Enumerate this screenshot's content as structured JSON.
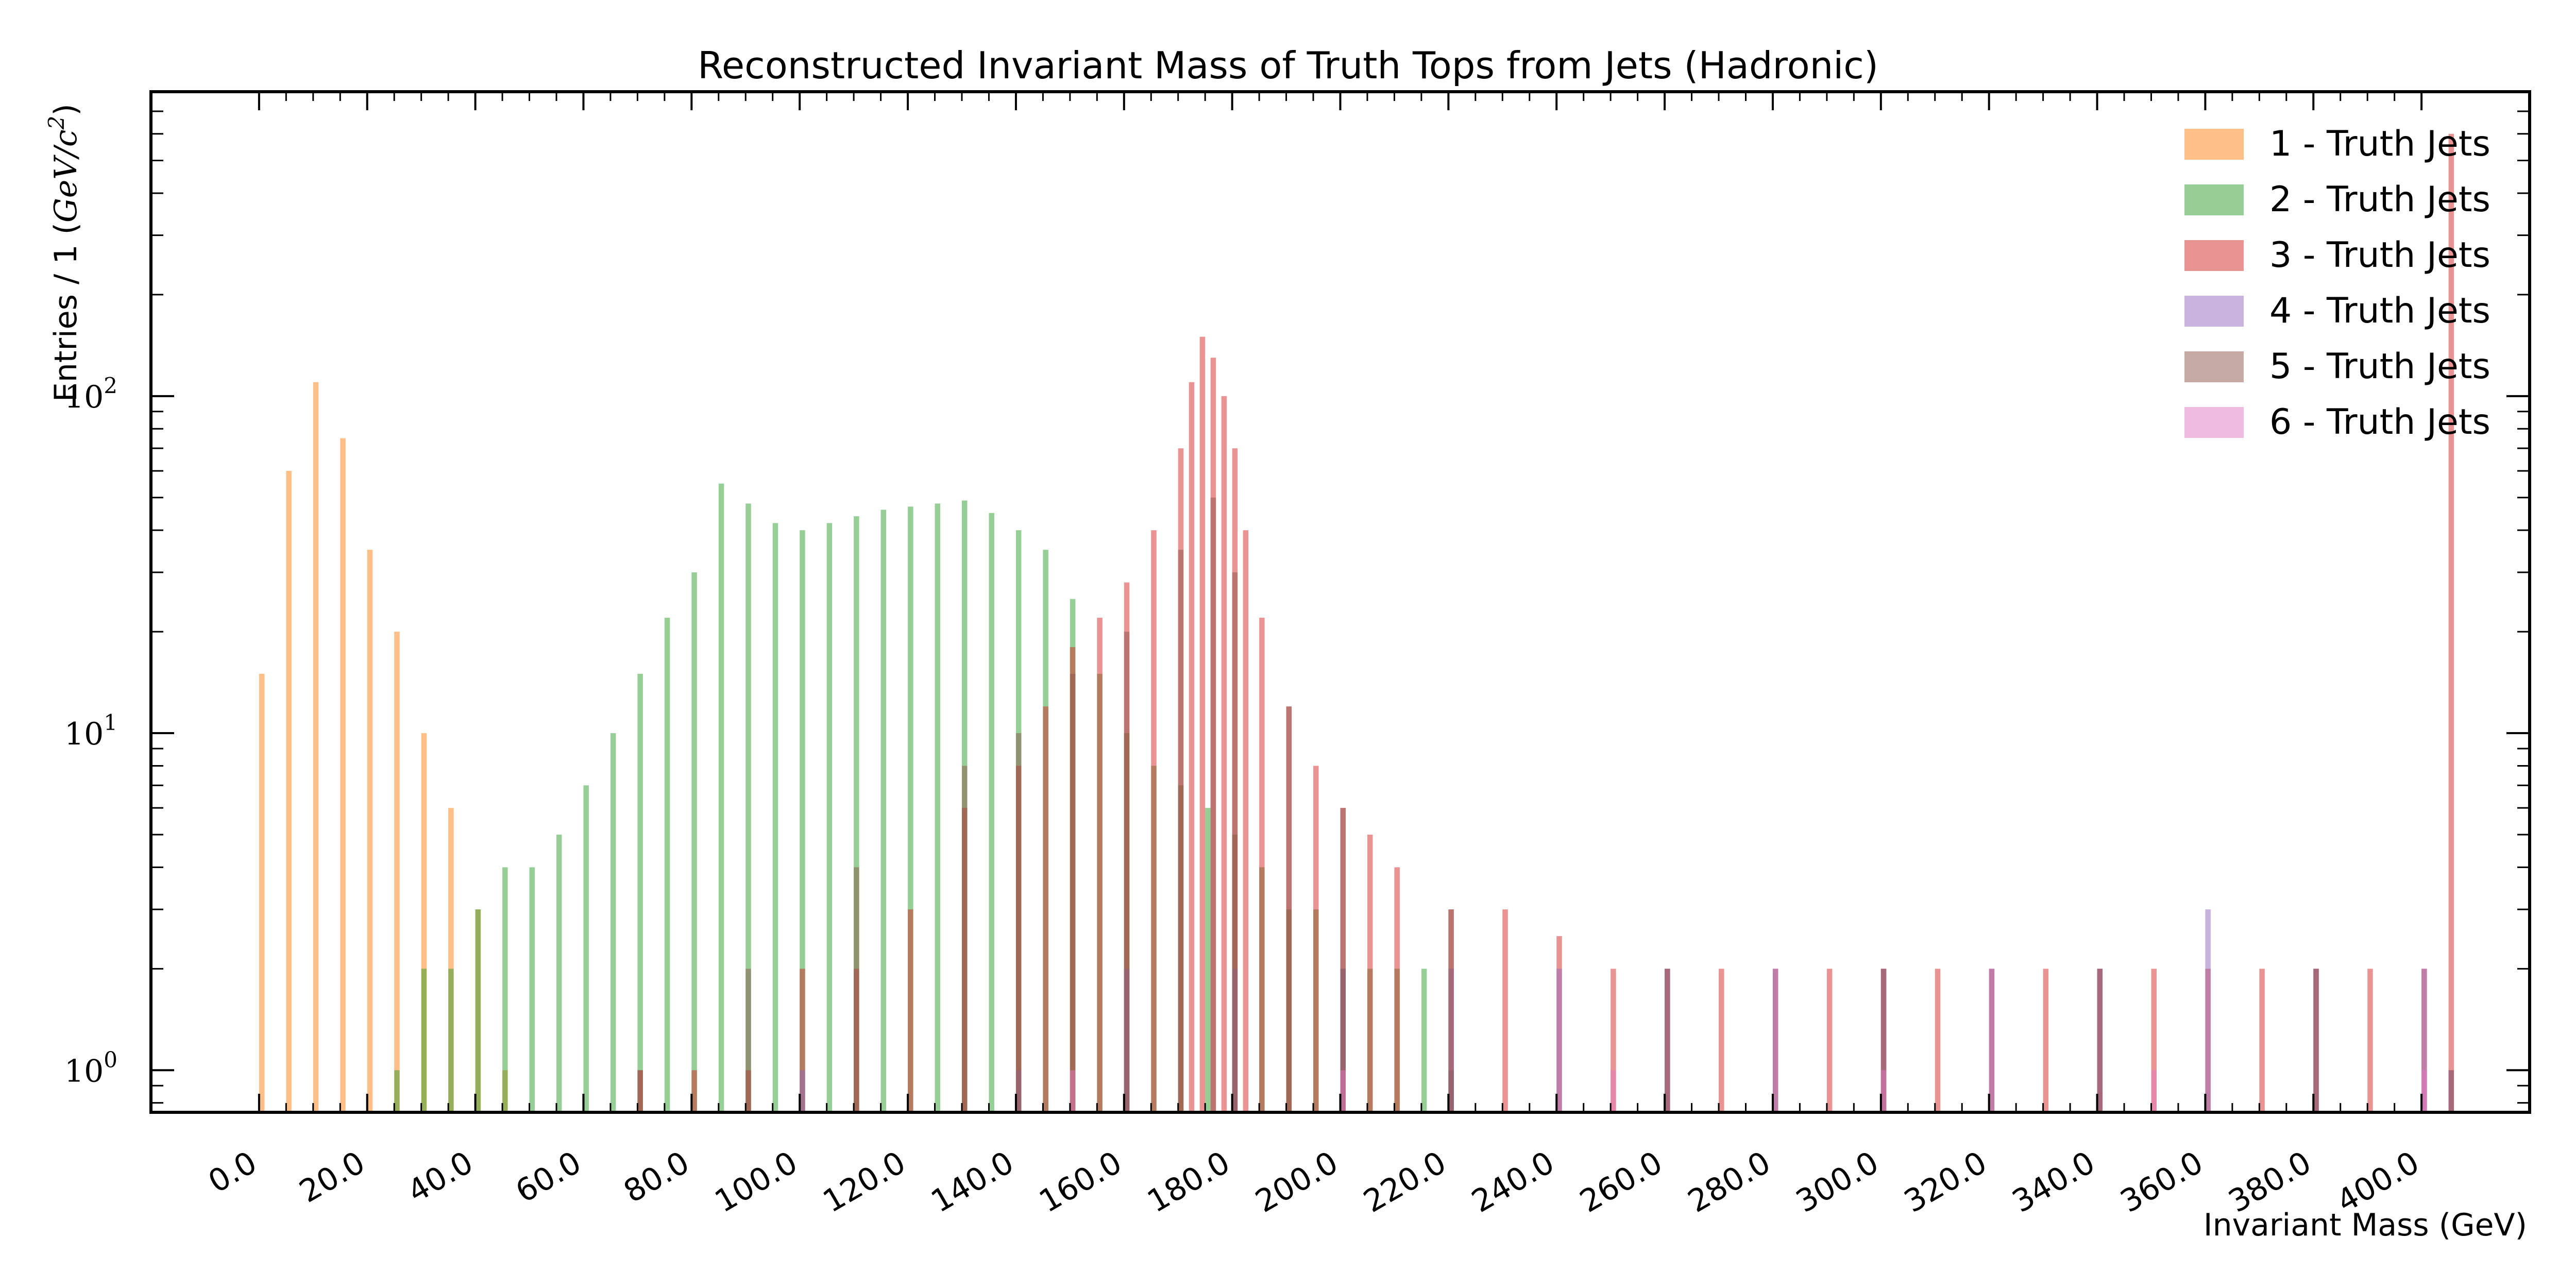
{
  "chart_data": {
    "type": "histogram",
    "title": "Reconstructed Invariant Mass of Truth Tops from Jets (Hadronic)",
    "xlabel": "Invariant Mass (GeV)",
    "ylabel_prefix": "Entries / 1 (",
    "ylabel_unit": "GeV/c",
    "ylabel_power": "2",
    "ylabel_suffix": ")",
    "xlim": [
      -20,
      420
    ],
    "ylim": [
      0.75,
      800
    ],
    "yscale": "log",
    "bin_width": 1,
    "x_ticks": [
      "0.0",
      "20.0",
      "40.0",
      "60.0",
      "80.0",
      "100.0",
      "120.0",
      "140.0",
      "160.0",
      "180.0",
      "200.0",
      "220.0",
      "240.0",
      "260.0",
      "280.0",
      "300.0",
      "320.0",
      "340.0",
      "360.0",
      "380.0",
      "400.0"
    ],
    "y_ticks": [
      {
        "value": 1,
        "base": "10",
        "exp": "0"
      },
      {
        "value": 10,
        "base": "10",
        "exp": "1"
      },
      {
        "value": 100,
        "base": "10",
        "exp": "2"
      }
    ],
    "legend_position": "top-right",
    "series": [
      {
        "name": "1 - Truth Jets",
        "color": "#ff7f0e"
      },
      {
        "name": "2 - Truth Jets",
        "color": "#2ca02c"
      },
      {
        "name": "3 - Truth Jets",
        "color": "#d62728"
      },
      {
        "name": "4 - Truth Jets",
        "color": "#9467bd"
      },
      {
        "name": "5 - Truth Jets",
        "color": "#8c564b"
      },
      {
        "name": "6 - Truth Jets",
        "color": "#e377c2"
      }
    ],
    "bins": [
      {
        "series": 0,
        "x": [
          0,
          5,
          10,
          15,
          20,
          25,
          30,
          35,
          40,
          45
        ],
        "y": [
          15,
          60,
          110,
          75,
          35,
          20,
          10,
          6,
          3,
          1
        ]
      },
      {
        "series": 1,
        "x": [
          25,
          30,
          35,
          40,
          45,
          50,
          55,
          60,
          65,
          70,
          75,
          80,
          85,
          90,
          95,
          100,
          105,
          110,
          115,
          120,
          125,
          130,
          135,
          140,
          145,
          150,
          155,
          160,
          165,
          170,
          175,
          180,
          185,
          190,
          195,
          200,
          205,
          210,
          215,
          220
        ],
        "y": [
          1,
          2,
          2,
          3,
          4,
          4,
          5,
          7,
          10,
          15,
          22,
          30,
          55,
          48,
          42,
          40,
          42,
          44,
          46,
          47,
          48,
          49,
          45,
          40,
          35,
          25,
          15,
          10,
          8,
          7,
          6,
          5,
          4,
          3,
          3,
          2,
          2,
          2,
          2,
          1
        ]
      },
      {
        "series": 2,
        "x": [
          70,
          80,
          90,
          100,
          110,
          120,
          130,
          140,
          145,
          150,
          155,
          160,
          165,
          170,
          172,
          174,
          176,
          178,
          180,
          182,
          185,
          190,
          195,
          200,
          205,
          210,
          220,
          230,
          240,
          250,
          260,
          270,
          280,
          290,
          300,
          310,
          320,
          330,
          340,
          350,
          360,
          370,
          380,
          390,
          400,
          405
        ],
        "y": [
          1,
          1,
          1,
          2,
          2,
          3,
          6,
          8,
          12,
          18,
          22,
          28,
          40,
          70,
          110,
          150,
          130,
          100,
          70,
          40,
          22,
          12,
          8,
          6,
          5,
          4,
          3,
          3,
          2.5,
          2,
          2,
          2,
          2,
          2,
          2,
          2,
          2,
          2,
          2,
          2,
          2,
          2,
          2,
          2,
          2,
          600
        ]
      },
      {
        "series": 3,
        "x": [
          100,
          140,
          160,
          180,
          200,
          220,
          240,
          260,
          280,
          300,
          320,
          340,
          360,
          380,
          400,
          405
        ],
        "y": [
          1,
          1,
          2,
          2,
          2,
          2,
          2,
          2,
          2,
          2,
          2,
          2,
          3,
          2,
          2,
          1
        ]
      },
      {
        "series": 4,
        "x": [
          70,
          90,
          110,
          130,
          140,
          150,
          160,
          170,
          176,
          180,
          190,
          200,
          220,
          260,
          300,
          340,
          380,
          405
        ],
        "y": [
          1,
          2,
          4,
          8,
          10,
          15,
          20,
          35,
          50,
          30,
          12,
          6,
          3,
          2,
          2,
          2,
          2,
          1
        ]
      },
      {
        "series": 5,
        "x": [
          150,
          200,
          250,
          300,
          350,
          400
        ],
        "y": [
          1,
          1,
          1,
          1,
          1,
          1
        ]
      }
    ]
  }
}
